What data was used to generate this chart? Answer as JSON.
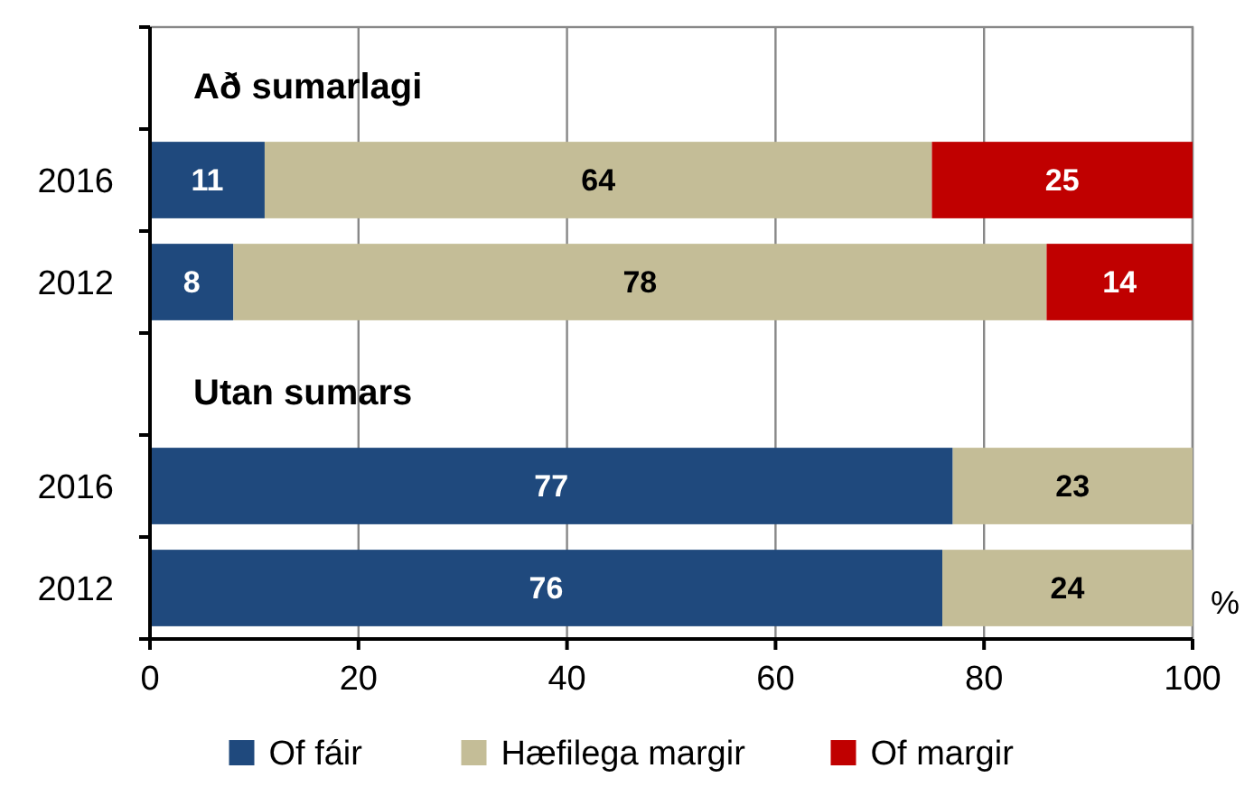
{
  "chart_data": {
    "type": "bar",
    "orientation": "horizontal",
    "stacked": true,
    "categories": [
      null,
      "2016",
      "2012",
      null,
      "2016",
      "2012"
    ],
    "series": [
      {
        "name": "Of fáir",
        "color": "#1f497d",
        "values": [
          null,
          11,
          8,
          null,
          77,
          76
        ]
      },
      {
        "name": "Hæfilega margir",
        "color": "#c4bd97",
        "values": [
          null,
          64,
          78,
          null,
          23,
          24
        ]
      },
      {
        "name": "Of margir",
        "color": "#c00000",
        "values": [
          null,
          25,
          14,
          null,
          null,
          null
        ]
      }
    ],
    "annotations": [
      "Að sumarlagi",
      "Utan sumars"
    ],
    "xlabel": "%",
    "xlim": [
      0,
      100
    ],
    "xticks": [
      0,
      20,
      40,
      60,
      80,
      100
    ],
    "grid": "x",
    "data_labels": true,
    "legend": "bottom"
  }
}
